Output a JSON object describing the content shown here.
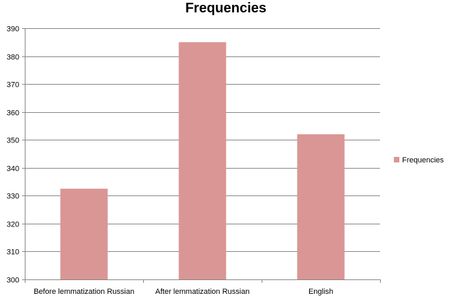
{
  "chart_data": {
    "type": "bar",
    "title": "Frequencies",
    "categories": [
      "Before lemmatization Russian",
      "After lemmatization Russian",
      "English"
    ],
    "series": [
      {
        "name": "Frequencies",
        "values": [
          332.5,
          385,
          352
        ]
      }
    ],
    "ylim": [
      300,
      390
    ],
    "yticks": [
      300,
      310,
      320,
      330,
      340,
      350,
      360,
      370,
      380,
      390
    ],
    "grid": true,
    "legend": "right",
    "bar_color": "#D99694"
  }
}
